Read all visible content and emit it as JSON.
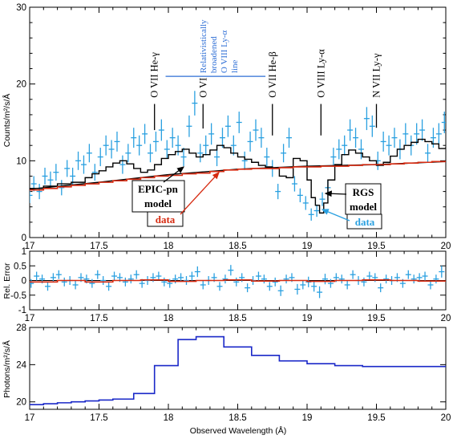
{
  "chart_data": [
    {
      "type": "line",
      "panel": "top",
      "ylabel": "Counts/m²/s/Å",
      "xlim": [
        17,
        20
      ],
      "ylim": [
        0,
        30
      ],
      "x_ticks": [
        "17",
        "17.5",
        "18",
        "18.5",
        "19",
        "19.5",
        "20"
      ],
      "y_ticks": [
        "0",
        "10",
        "20",
        "30"
      ],
      "series": [
        {
          "color": "#2aa0e0",
          "style": "points-with-errorbars",
          "x": [
            17.0,
            17.03,
            17.07,
            17.11,
            17.15,
            17.19,
            17.23,
            17.27,
            17.31,
            17.35,
            17.39,
            17.43,
            17.47,
            17.51,
            17.55,
            17.59,
            17.63,
            17.67,
            17.71,
            17.75,
            17.79,
            17.83,
            17.87,
            17.91,
            17.95,
            17.99,
            18.03,
            18.07,
            18.11,
            18.15,
            18.19,
            18.23,
            18.27,
            18.31,
            18.35,
            18.39,
            18.43,
            18.47,
            18.51,
            18.55,
            18.59,
            18.63,
            18.67,
            18.71,
            18.75,
            18.79,
            18.83,
            18.87,
            18.91,
            18.95,
            18.99,
            19.03,
            19.07,
            19.11,
            19.15,
            19.19,
            19.23,
            19.27,
            19.31,
            19.35,
            19.39,
            19.43,
            19.47,
            19.51,
            19.55,
            19.59,
            19.63,
            19.67,
            19.71,
            19.75,
            19.79,
            19.83,
            19.87,
            19.91,
            19.95,
            19.99
          ],
          "values": [
            5.5,
            7.0,
            6.0,
            8.0,
            7.5,
            8.5,
            6.5,
            9.0,
            8.0,
            10.0,
            9.5,
            11.0,
            8.5,
            10.5,
            12.0,
            11.5,
            12.5,
            9.5,
            11.0,
            13.0,
            12.0,
            13.5,
            11.0,
            12.5,
            14.0,
            11.5,
            13.0,
            12.0,
            10.5,
            14.5,
            17.5,
            11.0,
            12.0,
            13.5,
            10.5,
            13.0,
            14.5,
            12.0,
            15.0,
            10.0,
            12.5,
            14.0,
            13.0,
            10.5,
            9.0,
            6.0,
            11.0,
            13.0,
            7.0,
            5.5,
            4.5,
            3.0,
            3.5,
            5.0,
            6.5,
            10.5,
            11.5,
            12.0,
            14.0,
            13.0,
            11.5,
            15.5,
            14.5,
            10.0,
            12.5,
            12.0,
            13.0,
            11.5,
            13.5,
            12.0,
            13.5,
            14.0,
            11.0,
            13.0,
            13.5,
            15.0
          ],
          "errors": [
            1.0,
            1.0,
            1.0,
            1.1,
            1.1,
            1.1,
            1.0,
            1.1,
            1.1,
            1.2,
            1.2,
            1.2,
            1.1,
            1.2,
            1.3,
            1.2,
            1.3,
            1.2,
            1.2,
            1.3,
            1.3,
            1.3,
            1.2,
            1.3,
            1.4,
            1.2,
            1.3,
            1.3,
            1.2,
            1.4,
            1.6,
            1.2,
            1.3,
            1.4,
            1.2,
            1.3,
            1.4,
            1.3,
            1.4,
            1.2,
            1.3,
            1.4,
            1.3,
            1.2,
            1.1,
            1.0,
            1.2,
            1.3,
            1.0,
            0.9,
            0.9,
            0.8,
            0.8,
            0.9,
            1.0,
            1.2,
            1.3,
            1.3,
            1.4,
            1.3,
            1.3,
            1.5,
            1.4,
            1.2,
            1.3,
            1.3,
            1.3,
            1.3,
            1.4,
            1.3,
            1.4,
            1.4,
            1.2,
            1.3,
            1.4,
            1.4
          ]
        },
        {
          "color": "#000000",
          "style": "step",
          "x": [
            17.0,
            17.1,
            17.2,
            17.3,
            17.4,
            17.45,
            17.5,
            17.55,
            17.6,
            17.65,
            17.7,
            17.75,
            17.8,
            17.85,
            17.9,
            17.95,
            18.0,
            18.05,
            18.1,
            18.15,
            18.2,
            18.25,
            18.3,
            18.35,
            18.4,
            18.45,
            18.5,
            18.55,
            18.6,
            18.65,
            18.7,
            18.75,
            18.8,
            18.85,
            18.9,
            18.95,
            19.0,
            19.03,
            19.06,
            19.09,
            19.12,
            19.15,
            19.2,
            19.25,
            19.3,
            19.35,
            19.4,
            19.45,
            19.5,
            19.55,
            19.6,
            19.65,
            19.7,
            19.75,
            19.8,
            19.85,
            19.9,
            19.95,
            20.0
          ],
          "values": [
            6.4,
            6.7,
            7.0,
            7.2,
            7.8,
            8.3,
            8.7,
            9.2,
            9.7,
            10.0,
            9.6,
            9.0,
            8.5,
            8.8,
            9.5,
            10.3,
            10.8,
            11.2,
            11.5,
            11.0,
            10.5,
            10.8,
            11.4,
            12.0,
            11.7,
            11.0,
            10.5,
            10.2,
            9.8,
            9.4,
            9.2,
            9.0,
            8.0,
            7.8,
            10.3,
            10.0,
            7.5,
            5.2,
            4.2,
            3.2,
            4.5,
            7.5,
            9.5,
            10.8,
            11.4,
            11.0,
            10.5,
            10.0,
            9.4,
            9.8,
            10.6,
            11.5,
            12.0,
            12.4,
            12.8,
            12.5,
            12.2,
            11.6,
            11.8
          ]
        },
        {
          "color": "#000000",
          "style": "line",
          "x": [
            17.0,
            17.5,
            18.0,
            18.5,
            19.0,
            19.5,
            20.0
          ],
          "values": [
            6.3,
            7.2,
            8.2,
            8.9,
            9.3,
            9.5,
            9.9
          ]
        },
        {
          "color": "#d62a10",
          "style": "step",
          "x": [
            17.0,
            17.1,
            17.2,
            17.3,
            17.4,
            17.5,
            17.6,
            17.7,
            17.8,
            17.9,
            18.0,
            18.1,
            18.2,
            18.3,
            18.4,
            18.5,
            18.6,
            18.7,
            18.8,
            18.9,
            19.0,
            19.1,
            19.2,
            19.3,
            19.4,
            19.5,
            19.6,
            19.7,
            19.8,
            19.9
          ],
          "values": [
            6.2,
            6.4,
            6.6,
            6.8,
            7.0,
            7.2,
            7.4,
            7.6,
            7.8,
            8.0,
            8.1,
            8.3,
            8.4,
            8.6,
            8.8,
            8.9,
            9.0,
            9.0,
            9.1,
            9.2,
            9.2,
            9.3,
            9.3,
            9.4,
            9.5,
            9.5,
            9.6,
            9.7,
            9.8,
            9.9
          ]
        }
      ],
      "line_labels": [
        {
          "text": "O VII He-γ",
          "x": 17.9,
          "y_top": 18,
          "y_bottom": 14
        },
        {
          "text": "O VI",
          "x": 18.25,
          "y_top": 18,
          "y_bottom": 14.2
        },
        {
          "text": "O VII He-β",
          "x": 18.75,
          "y_top": 18,
          "y_bottom": 13.3
        },
        {
          "text": "O VIII Ly-α",
          "x": 19.1,
          "y_top": 18,
          "y_bottom": 13.3
        },
        {
          "text": "N VII Ly-γ",
          "x": 19.5,
          "y_top": 18,
          "y_bottom": 14.3
        }
      ],
      "rel_label": {
        "lines": [
          "Relativistically",
          "broadened",
          "O VIII Ly-α",
          "line"
        ],
        "bar_x1": 17.98,
        "bar_x2": 18.7,
        "bar_y": 21,
        "center_x": 18.36
      },
      "annotations": [
        {
          "lines": [
            "EPIC-pn",
            "model"
          ],
          "box": true,
          "color": "#000000"
        },
        {
          "lines": [
            "data"
          ],
          "box": true,
          "color": "#d62a10"
        },
        {
          "lines": [
            "RGS",
            "model"
          ],
          "box": true,
          "color": "#000000"
        },
        {
          "lines": [
            "data"
          ],
          "box": true,
          "color": "#2aa0e0"
        }
      ]
    },
    {
      "type": "line",
      "panel": "middle",
      "ylabel": "Rel. Error",
      "xlim": [
        17,
        20
      ],
      "ylim": [
        -1,
        1
      ],
      "x_ticks": [
        "17",
        "17.5",
        "18",
        "18.5",
        "19",
        "19.5",
        "20"
      ],
      "y_ticks": [
        "-1",
        "-0.5",
        "0",
        "0.5",
        "1"
      ],
      "series": [
        {
          "color": "#2aa0e0",
          "style": "points-with-errorbars",
          "x": [
            17.01,
            17.05,
            17.09,
            17.13,
            17.17,
            17.21,
            17.25,
            17.29,
            17.33,
            17.37,
            17.41,
            17.45,
            17.49,
            17.53,
            17.57,
            17.61,
            17.65,
            17.69,
            17.73,
            17.77,
            17.81,
            17.85,
            17.89,
            17.93,
            17.97,
            18.01,
            18.05,
            18.09,
            18.13,
            18.17,
            18.21,
            18.25,
            18.29,
            18.33,
            18.37,
            18.41,
            18.45,
            18.49,
            18.53,
            18.57,
            18.61,
            18.65,
            18.69,
            18.73,
            18.77,
            18.81,
            18.85,
            18.89,
            18.93,
            18.97,
            19.01,
            19.05,
            19.09,
            19.13,
            19.17,
            19.21,
            19.25,
            19.29,
            19.33,
            19.37,
            19.41,
            19.45,
            19.49,
            19.53,
            19.57,
            19.61,
            19.65,
            19.69,
            19.73,
            19.77,
            19.81,
            19.85,
            19.89,
            19.93,
            19.97
          ],
          "values": [
            -0.1,
            0.15,
            0.05,
            -0.2,
            0.1,
            0.2,
            -0.05,
            0.0,
            -0.15,
            0.1,
            0.05,
            -0.1,
            0.2,
            0.0,
            -0.2,
            0.15,
            0.1,
            -0.05,
            0.05,
            0.2,
            -0.1,
            0.0,
            0.1,
            0.15,
            -0.05,
            -0.1,
            0.05,
            0.1,
            0.0,
            0.15,
            0.3,
            -0.15,
            0.0,
            0.1,
            -0.2,
            0.05,
            0.35,
            -0.05,
            0.1,
            -0.25,
            0.0,
            0.15,
            0.05,
            -0.2,
            -0.05,
            -0.35,
            0.05,
            0.1,
            -0.3,
            -0.15,
            -0.05,
            -0.2,
            -0.4,
            0.05,
            -0.1,
            0.1,
            0.05,
            -0.15,
            0.2,
            0.0,
            -0.05,
            0.15,
            0.1,
            -0.25,
            0.05,
            0.0,
            0.1,
            -0.1,
            0.2,
            0.05,
            0.1,
            0.15,
            -0.15,
            0.05,
            0.3
          ],
          "errors": [
            0.15,
            0.15,
            0.15,
            0.15,
            0.15,
            0.15,
            0.15,
            0.15,
            0.15,
            0.15,
            0.15,
            0.15,
            0.15,
            0.15,
            0.15,
            0.15,
            0.15,
            0.15,
            0.15,
            0.15,
            0.15,
            0.15,
            0.15,
            0.15,
            0.15,
            0.15,
            0.15,
            0.15,
            0.15,
            0.15,
            0.18,
            0.15,
            0.15,
            0.15,
            0.15,
            0.15,
            0.18,
            0.15,
            0.15,
            0.15,
            0.15,
            0.15,
            0.15,
            0.15,
            0.15,
            0.18,
            0.15,
            0.15,
            0.18,
            0.15,
            0.18,
            0.18,
            0.2,
            0.18,
            0.15,
            0.15,
            0.15,
            0.15,
            0.15,
            0.15,
            0.15,
            0.15,
            0.15,
            0.15,
            0.15,
            0.15,
            0.15,
            0.15,
            0.15,
            0.15,
            0.15,
            0.15,
            0.15,
            0.15,
            0.2
          ]
        },
        {
          "color": "#d62a10",
          "style": "step",
          "x": [
            17.0,
            17.2,
            17.4,
            17.6,
            17.8,
            18.0,
            18.2,
            18.4,
            18.6,
            18.8,
            19.0,
            19.2,
            19.4,
            19.6,
            19.8
          ],
          "values": [
            -0.05,
            0.0,
            -0.05,
            0.0,
            0.02,
            -0.03,
            0.0,
            0.02,
            -0.02,
            0.0,
            -0.03,
            0.0,
            0.02,
            0.0,
            -0.02
          ]
        }
      ]
    },
    {
      "type": "line",
      "panel": "bottom",
      "ylabel": "Photons/m²/s/Å",
      "xlabel": "Observed Wavelength (Å)",
      "xlim": [
        17,
        20
      ],
      "ylim": [
        19.2,
        28
      ],
      "x_ticks": [
        "17",
        "17.5",
        "18",
        "18.5",
        "19",
        "19.5",
        "20"
      ],
      "y_ticks": [
        "20",
        "24",
        "28"
      ],
      "series": [
        {
          "color": "#1a28c8",
          "style": "step",
          "x": [
            17.0,
            17.1,
            17.2,
            17.3,
            17.4,
            17.5,
            17.6,
            17.75,
            17.9,
            18.07,
            18.2,
            18.4,
            18.6,
            18.8,
            19.0,
            19.2,
            19.4,
            19.6,
            19.8,
            20.0
          ],
          "values": [
            19.7,
            19.8,
            19.9,
            20.0,
            20.1,
            20.2,
            20.3,
            20.9,
            23.9,
            26.7,
            27.0,
            25.9,
            25.0,
            24.4,
            24.1,
            23.9,
            23.8,
            23.8,
            23.8,
            23.9
          ]
        }
      ]
    }
  ]
}
